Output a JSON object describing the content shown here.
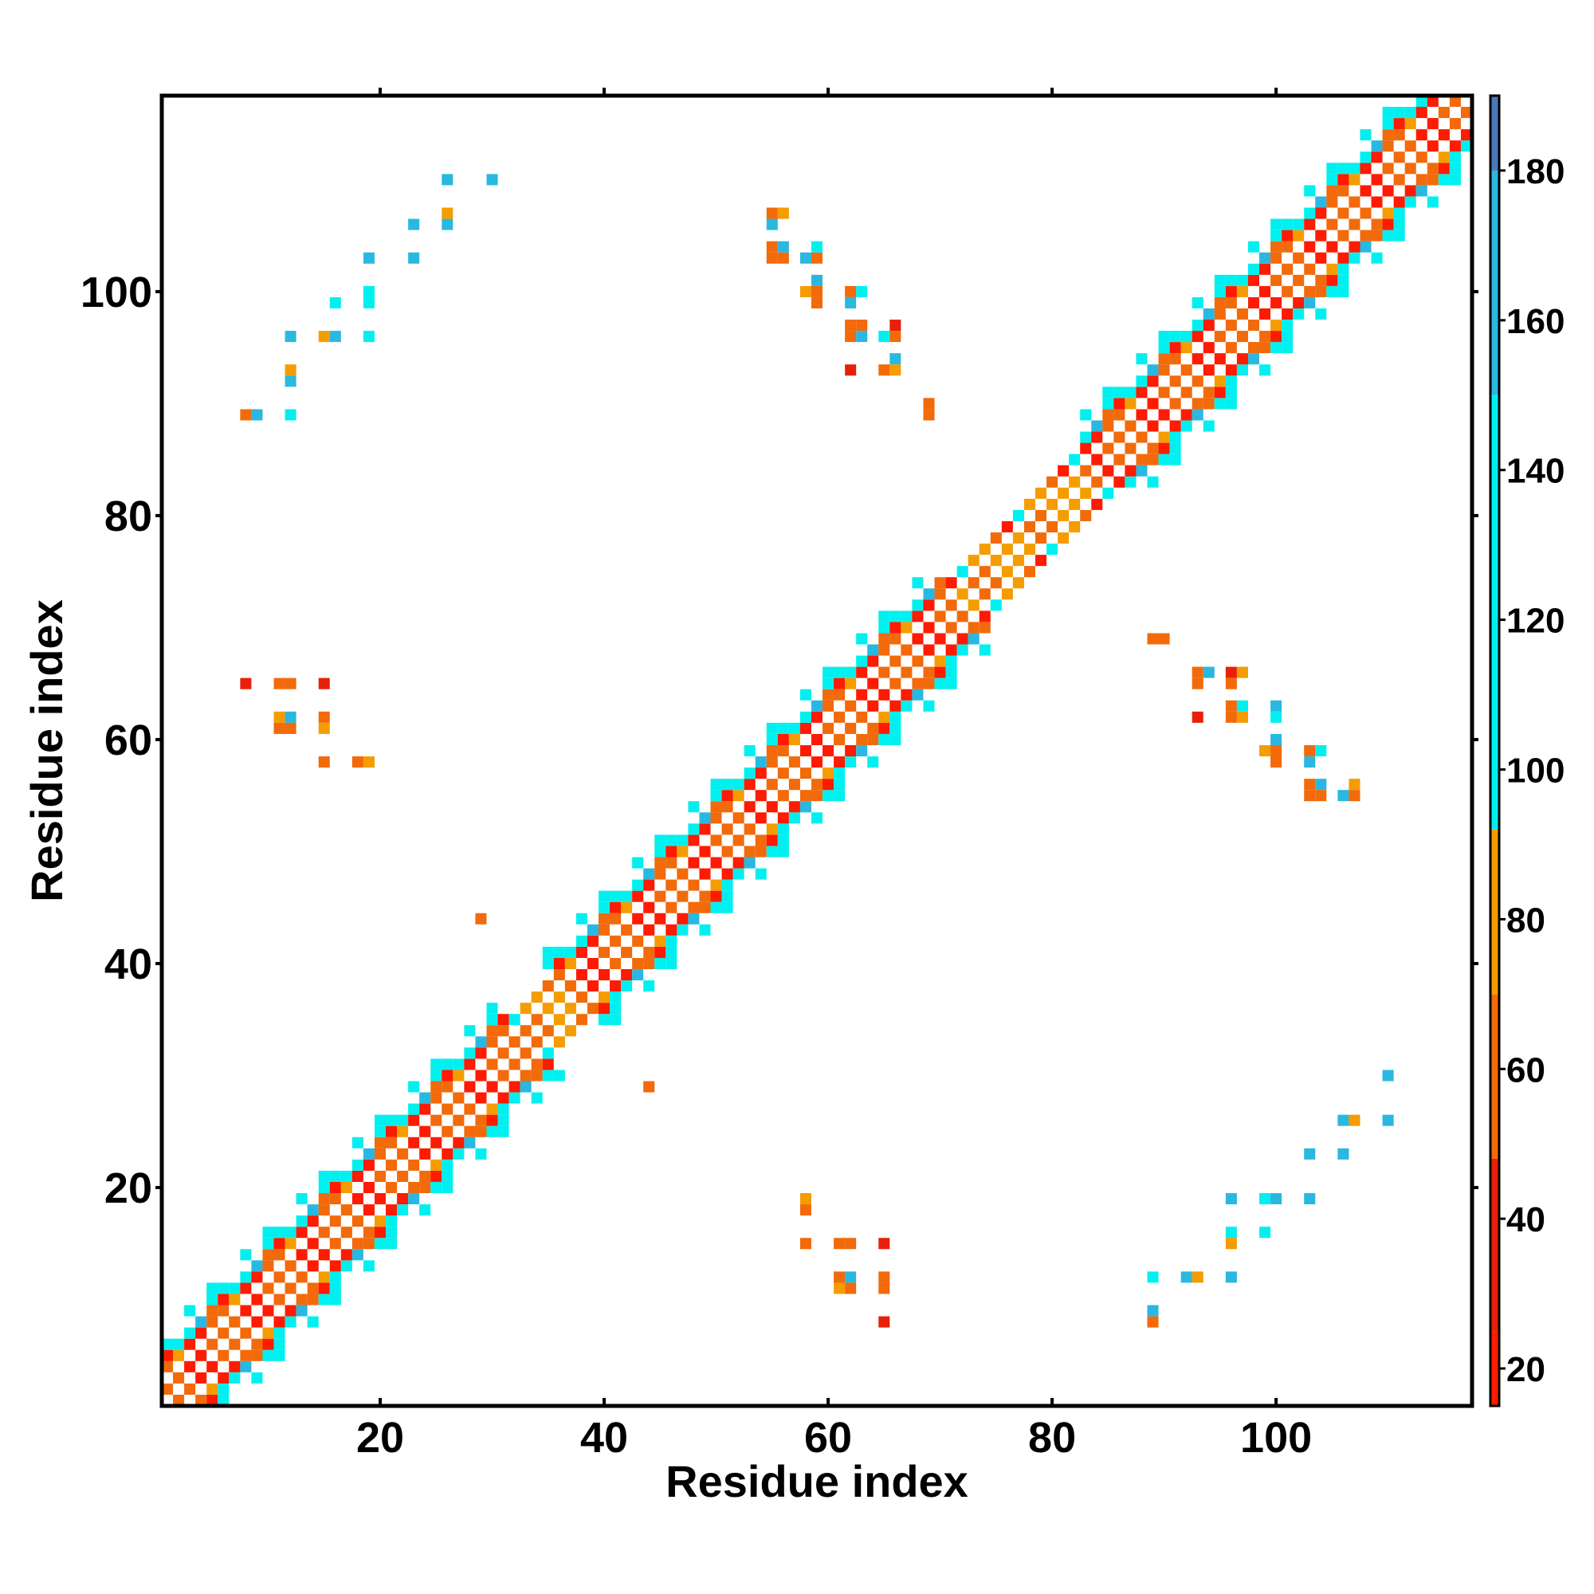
{
  "chart_data": {
    "type": "heatmap",
    "title": "",
    "xlabel": "Residue index",
    "ylabel": "Residue index",
    "xlim": [
      1,
      117
    ],
    "ylim": [
      1,
      117
    ],
    "x_ticks": [
      20,
      40,
      60,
      80,
      100
    ],
    "y_ticks": [
      20,
      40,
      60,
      80,
      100
    ],
    "colorbar": {
      "ticks": [
        20,
        40,
        60,
        80,
        100,
        120,
        140,
        160,
        180
      ],
      "range": [
        15,
        190
      ],
      "bands": [
        {
          "from": 15,
          "to": 25,
          "color": "#ff1a00"
        },
        {
          "from": 25,
          "to": 48,
          "color": "#e8200a"
        },
        {
          "from": 48,
          "to": 70,
          "color": "#f26a0a"
        },
        {
          "from": 70,
          "to": 92,
          "color": "#f59c00"
        },
        {
          "from": 92,
          "to": 150,
          "color": "#00f0f0"
        },
        {
          "from": 150,
          "to": 180,
          "color": "#2ab8e0"
        },
        {
          "from": 180,
          "to": 190,
          "color": "#4a78b8"
        }
      ]
    },
    "diagonal_band": {
      "pattern_colors": [
        "#ff1a00",
        "#f26a0a",
        "#00f0f0",
        "#2ab8e0",
        "#f59c00"
      ],
      "helix_segments": [
        [
          1,
          33
        ],
        [
          38,
          72
        ],
        [
          85,
          117
        ]
      ],
      "strand_segments": [
        [
          33,
          38
        ],
        [
          72,
          85
        ]
      ]
    },
    "off_diagonal_points": [
      {
        "x": 8,
        "y": 89,
        "c": "#f26a0a"
      },
      {
        "x": 9,
        "y": 89,
        "c": "#2ab8e0"
      },
      {
        "x": 12,
        "y": 89,
        "c": "#00f0f0"
      },
      {
        "x": 12,
        "y": 92,
        "c": "#2ab8e0"
      },
      {
        "x": 12,
        "y": 93,
        "c": "#f59c00"
      },
      {
        "x": 12,
        "y": 96,
        "c": "#2ab8e0"
      },
      {
        "x": 15,
        "y": 96,
        "c": "#f59c00"
      },
      {
        "x": 16,
        "y": 96,
        "c": "#2ab8e0"
      },
      {
        "x": 16,
        "y": 99,
        "c": "#00f0f0"
      },
      {
        "x": 19,
        "y": 96,
        "c": "#00f0f0"
      },
      {
        "x": 19,
        "y": 99,
        "c": "#00f0f0"
      },
      {
        "x": 19,
        "y": 100,
        "c": "#00f0f0"
      },
      {
        "x": 19,
        "y": 103,
        "c": "#2ab8e0"
      },
      {
        "x": 23,
        "y": 103,
        "c": "#2ab8e0"
      },
      {
        "x": 23,
        "y": 106,
        "c": "#2ab8e0"
      },
      {
        "x": 26,
        "y": 106,
        "c": "#2ab8e0"
      },
      {
        "x": 26,
        "y": 107,
        "c": "#f59c00"
      },
      {
        "x": 26,
        "y": 110,
        "c": "#2ab8e0"
      },
      {
        "x": 30,
        "y": 110,
        "c": "#2ab8e0"
      },
      {
        "x": 55,
        "y": 103,
        "c": "#f26a0a"
      },
      {
        "x": 55,
        "y": 104,
        "c": "#f26a0a"
      },
      {
        "x": 56,
        "y": 103,
        "c": "#f26a0a"
      },
      {
        "x": 56,
        "y": 104,
        "c": "#2ab8e0"
      },
      {
        "x": 55,
        "y": 106,
        "c": "#2ab8e0"
      },
      {
        "x": 55,
        "y": 107,
        "c": "#f26a0a"
      },
      {
        "x": 56,
        "y": 107,
        "c": "#f59c00"
      },
      {
        "x": 58,
        "y": 103,
        "c": "#2ab8e0"
      },
      {
        "x": 59,
        "y": 103,
        "c": "#f26a0a"
      },
      {
        "x": 59,
        "y": 104,
        "c": "#00f0f0"
      },
      {
        "x": 59,
        "y": 101,
        "c": "#2ab8e0"
      },
      {
        "x": 58,
        "y": 100,
        "c": "#f59c00"
      },
      {
        "x": 59,
        "y": 100,
        "c": "#f26a0a"
      },
      {
        "x": 59,
        "y": 99,
        "c": "#f26a0a"
      },
      {
        "x": 62,
        "y": 100,
        "c": "#f26a0a"
      },
      {
        "x": 63,
        "y": 100,
        "c": "#00f0f0"
      },
      {
        "x": 62,
        "y": 99,
        "c": "#2ab8e0"
      },
      {
        "x": 62,
        "y": 97,
        "c": "#f26a0a"
      },
      {
        "x": 62,
        "y": 96,
        "c": "#f26a0a"
      },
      {
        "x": 63,
        "y": 97,
        "c": "#f26a0a"
      },
      {
        "x": 63,
        "y": 96,
        "c": "#2ab8e0"
      },
      {
        "x": 65,
        "y": 96,
        "c": "#00f0f0"
      },
      {
        "x": 66,
        "y": 97,
        "c": "#e8200a"
      },
      {
        "x": 66,
        "y": 96,
        "c": "#f26a0a"
      },
      {
        "x": 66,
        "y": 94,
        "c": "#2ab8e0"
      },
      {
        "x": 62,
        "y": 93,
        "c": "#e8200a"
      },
      {
        "x": 65,
        "y": 93,
        "c": "#f26a0a"
      },
      {
        "x": 66,
        "y": 93,
        "c": "#f59c00"
      },
      {
        "x": 69,
        "y": 90,
        "c": "#f26a0a"
      },
      {
        "x": 69,
        "y": 89,
        "c": "#f26a0a"
      },
      {
        "x": 8,
        "y": 65,
        "c": "#e8200a"
      },
      {
        "x": 11,
        "y": 65,
        "c": "#f26a0a"
      },
      {
        "x": 12,
        "y": 65,
        "c": "#f26a0a"
      },
      {
        "x": 15,
        "y": 65,
        "c": "#e8200a"
      },
      {
        "x": 11,
        "y": 62,
        "c": "#f59c00"
      },
      {
        "x": 12,
        "y": 62,
        "c": "#2ab8e0"
      },
      {
        "x": 11,
        "y": 61,
        "c": "#f26a0a"
      },
      {
        "x": 12,
        "y": 61,
        "c": "#f26a0a"
      },
      {
        "x": 15,
        "y": 62,
        "c": "#f26a0a"
      },
      {
        "x": 15,
        "y": 61,
        "c": "#f59c00"
      },
      {
        "x": 15,
        "y": 58,
        "c": "#f26a0a"
      },
      {
        "x": 18,
        "y": 58,
        "c": "#f26a0a"
      },
      {
        "x": 19,
        "y": 58,
        "c": "#f59c00"
      },
      {
        "x": 29,
        "y": 44,
        "c": "#f26a0a"
      },
      {
        "x": 44,
        "y": 29,
        "c": "#f26a0a"
      },
      {
        "x": 89,
        "y": 69,
        "c": "#f26a0a"
      },
      {
        "x": 90,
        "y": 69,
        "c": "#f26a0a"
      },
      {
        "x": 93,
        "y": 66,
        "c": "#f26a0a"
      },
      {
        "x": 94,
        "y": 66,
        "c": "#2ab8e0"
      },
      {
        "x": 93,
        "y": 65,
        "c": "#f26a0a"
      },
      {
        "x": 96,
        "y": 66,
        "c": "#e8200a"
      },
      {
        "x": 97,
        "y": 66,
        "c": "#f59c00"
      },
      {
        "x": 96,
        "y": 65,
        "c": "#f26a0a"
      },
      {
        "x": 93,
        "y": 62,
        "c": "#e8200a"
      },
      {
        "x": 96,
        "y": 63,
        "c": "#f26a0a"
      },
      {
        "x": 96,
        "y": 62,
        "c": "#f26a0a"
      },
      {
        "x": 97,
        "y": 63,
        "c": "#00f0f0"
      },
      {
        "x": 97,
        "y": 62,
        "c": "#f59c00"
      },
      {
        "x": 100,
        "y": 63,
        "c": "#2ab8e0"
      },
      {
        "x": 100,
        "y": 62,
        "c": "#00f0f0"
      },
      {
        "x": 100,
        "y": 60,
        "c": "#2ab8e0"
      },
      {
        "x": 99,
        "y": 59,
        "c": "#f59c00"
      },
      {
        "x": 100,
        "y": 59,
        "c": "#f26a0a"
      },
      {
        "x": 100,
        "y": 58,
        "c": "#f26a0a"
      },
      {
        "x": 103,
        "y": 59,
        "c": "#f26a0a"
      },
      {
        "x": 104,
        "y": 59,
        "c": "#00f0f0"
      },
      {
        "x": 103,
        "y": 58,
        "c": "#2ab8e0"
      },
      {
        "x": 103,
        "y": 56,
        "c": "#f26a0a"
      },
      {
        "x": 103,
        "y": 55,
        "c": "#f26a0a"
      },
      {
        "x": 104,
        "y": 56,
        "c": "#2ab8e0"
      },
      {
        "x": 104,
        "y": 55,
        "c": "#f26a0a"
      },
      {
        "x": 106,
        "y": 55,
        "c": "#2ab8e0"
      },
      {
        "x": 107,
        "y": 56,
        "c": "#f59c00"
      },
      {
        "x": 107,
        "y": 55,
        "c": "#f26a0a"
      },
      {
        "x": 58,
        "y": 19,
        "c": "#f59c00"
      },
      {
        "x": 58,
        "y": 18,
        "c": "#f26a0a"
      },
      {
        "x": 58,
        "y": 15,
        "c": "#f26a0a"
      },
      {
        "x": 61,
        "y": 15,
        "c": "#f26a0a"
      },
      {
        "x": 62,
        "y": 15,
        "c": "#f26a0a"
      },
      {
        "x": 65,
        "y": 15,
        "c": "#e8200a"
      },
      {
        "x": 61,
        "y": 12,
        "c": "#f26a0a"
      },
      {
        "x": 62,
        "y": 12,
        "c": "#2ab8e0"
      },
      {
        "x": 61,
        "y": 11,
        "c": "#f59c00"
      },
      {
        "x": 62,
        "y": 11,
        "c": "#f26a0a"
      },
      {
        "x": 65,
        "y": 12,
        "c": "#f26a0a"
      },
      {
        "x": 65,
        "y": 11,
        "c": "#f26a0a"
      },
      {
        "x": 65,
        "y": 8,
        "c": "#e8200a"
      },
      {
        "x": 89,
        "y": 12,
        "c": "#00f0f0"
      },
      {
        "x": 89,
        "y": 9,
        "c": "#2ab8e0"
      },
      {
        "x": 89,
        "y": 8,
        "c": "#f26a0a"
      },
      {
        "x": 92,
        "y": 12,
        "c": "#2ab8e0"
      },
      {
        "x": 93,
        "y": 12,
        "c": "#f59c00"
      },
      {
        "x": 96,
        "y": 12,
        "c": "#2ab8e0"
      },
      {
        "x": 96,
        "y": 16,
        "c": "#00f0f0"
      },
      {
        "x": 96,
        "y": 15,
        "c": "#f59c00"
      },
      {
        "x": 96,
        "y": 19,
        "c": "#2ab8e0"
      },
      {
        "x": 99,
        "y": 16,
        "c": "#00f0f0"
      },
      {
        "x": 99,
        "y": 19,
        "c": "#00f0f0"
      },
      {
        "x": 100,
        "y": 19,
        "c": "#2ab8e0"
      },
      {
        "x": 103,
        "y": 19,
        "c": "#2ab8e0"
      },
      {
        "x": 103,
        "y": 23,
        "c": "#2ab8e0"
      },
      {
        "x": 106,
        "y": 23,
        "c": "#2ab8e0"
      },
      {
        "x": 106,
        "y": 26,
        "c": "#2ab8e0"
      },
      {
        "x": 107,
        "y": 26,
        "c": "#f59c00"
      },
      {
        "x": 110,
        "y": 26,
        "c": "#2ab8e0"
      },
      {
        "x": 110,
        "y": 30,
        "c": "#2ab8e0"
      }
    ]
  }
}
